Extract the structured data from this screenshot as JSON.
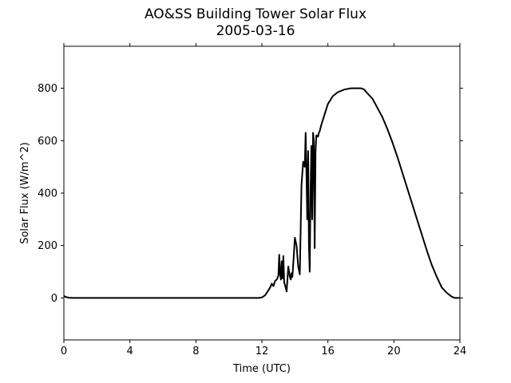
{
  "chart_data": {
    "type": "line",
    "title": "AO&SS Building Tower Solar Flux",
    "subtitle": "2005-03-16",
    "xlabel": "Time (UTC)",
    "ylabel": "Solar Flux (W/m^2)",
    "xlim": [
      0,
      24
    ],
    "ylim": [
      -160,
      960
    ],
    "xticks": [
      0,
      4,
      8,
      12,
      16,
      20,
      24
    ],
    "yticks": [
      0,
      200,
      400,
      600,
      800
    ],
    "grid": false,
    "legend": "none",
    "line_color": "#000000",
    "series": [
      {
        "x": [
          0,
          0.1,
          0.3,
          0.6,
          1.0,
          2.0,
          4.0,
          6.0,
          8.0,
          10.0,
          11.0,
          11.8,
          12.0,
          12.2,
          12.4,
          12.5,
          12.6,
          12.7,
          12.8,
          12.9,
          13.0,
          13.05,
          13.1,
          13.15,
          13.2,
          13.25,
          13.3,
          13.35,
          13.4,
          13.5,
          13.6,
          13.7,
          13.75,
          13.8,
          13.85,
          13.9,
          14.0,
          14.1,
          14.2,
          14.3,
          14.4,
          14.5,
          14.6,
          14.65,
          14.7,
          14.75,
          14.8,
          14.85,
          14.9,
          14.95,
          15.0,
          15.05,
          15.1,
          15.15,
          15.2,
          15.25,
          15.3,
          15.35,
          15.4,
          15.45,
          15.5,
          15.6,
          15.8,
          16.0,
          16.3,
          16.6,
          17.0,
          17.4,
          17.8,
          18.0,
          18.2,
          18.4,
          18.7,
          19.0,
          19.3,
          19.6,
          19.9,
          20.2,
          20.5,
          20.8,
          21.1,
          21.4,
          21.7,
          22.0,
          22.3,
          22.6,
          22.9,
          23.2,
          23.5,
          23.7,
          23.85,
          24.0
        ],
        "y": [
          8,
          4,
          1,
          0,
          0,
          0,
          0,
          0,
          0,
          0,
          0,
          0,
          2,
          10,
          30,
          40,
          55,
          45,
          65,
          70,
          85,
          165,
          95,
          70,
          140,
          75,
          160,
          60,
          50,
          25,
          120,
          80,
          70,
          95,
          80,
          130,
          230,
          200,
          120,
          90,
          430,
          520,
          500,
          630,
          480,
          300,
          560,
          200,
          100,
          420,
          580,
          300,
          630,
          600,
          190,
          560,
          620,
          620,
          615,
          630,
          635,
          660,
          700,
          740,
          770,
          785,
          795,
          800,
          800,
          800,
          795,
          780,
          760,
          725,
          690,
          645,
          595,
          540,
          480,
          420,
          360,
          300,
          240,
          180,
          125,
          80,
          40,
          20,
          5,
          0,
          0,
          0
        ]
      }
    ]
  }
}
